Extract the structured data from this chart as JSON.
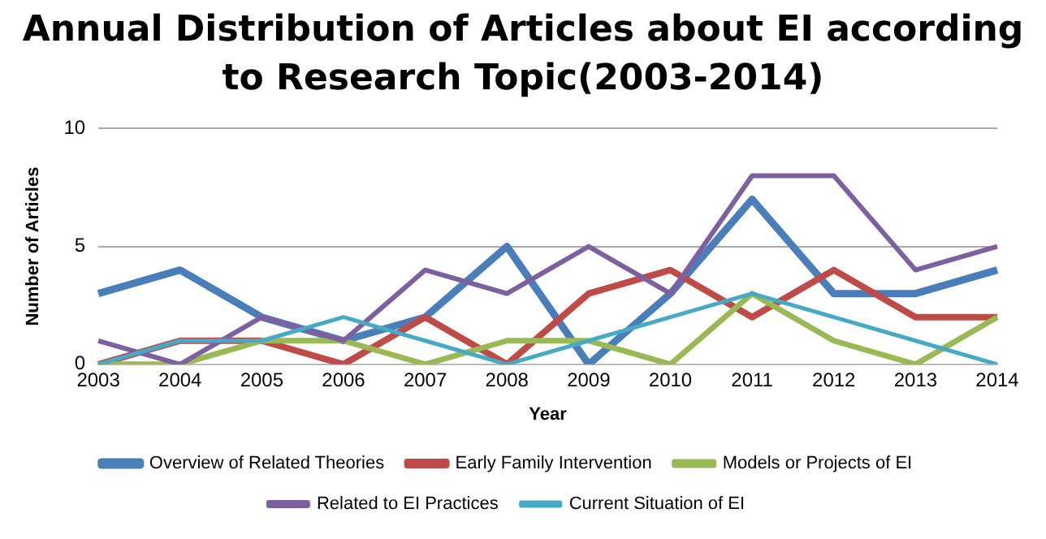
{
  "chart_data": {
    "type": "line",
    "title": "Annual Distribution of Articles about EI according to Research Topic(2003-2014)",
    "xlabel": "Year",
    "ylabel": "Number of Articles",
    "categories": [
      "2003",
      "2004",
      "2005",
      "2006",
      "2007",
      "2008",
      "2009",
      "2010",
      "2011",
      "2012",
      "2013",
      "2014"
    ],
    "series": [
      {
        "name": "Overview of Related Theories",
        "color": "#4a7ebb",
        "values": [
          3,
          4,
          2,
          1,
          2,
          5,
          0,
          3,
          7,
          3,
          3,
          4
        ]
      },
      {
        "name": "Early Family Intervention",
        "color": "#be4b48",
        "values": [
          0,
          1,
          1,
          0,
          2,
          0,
          3,
          4,
          2,
          4,
          2,
          2
        ]
      },
      {
        "name": "Models or Projects of EI",
        "color": "#98b954",
        "values": [
          0,
          0,
          1,
          1,
          0,
          1,
          1,
          0,
          3,
          1,
          0,
          2
        ]
      },
      {
        "name": "Related to EI Practices",
        "color": "#7d60a0",
        "values": [
          1,
          0,
          2,
          1,
          4,
          3,
          5,
          3,
          8,
          8,
          4,
          5
        ]
      },
      {
        "name": "Current Situation of EI",
        "color": "#46aac5",
        "values": [
          0,
          1,
          1,
          2,
          1,
          0,
          1,
          2,
          3,
          2,
          1,
          0
        ]
      }
    ],
    "ylim": [
      0,
      10
    ],
    "yticks": [
      0,
      5,
      10
    ],
    "grid": "y",
    "legend": "bottom",
    "marker": "none",
    "line_style": "solid"
  }
}
